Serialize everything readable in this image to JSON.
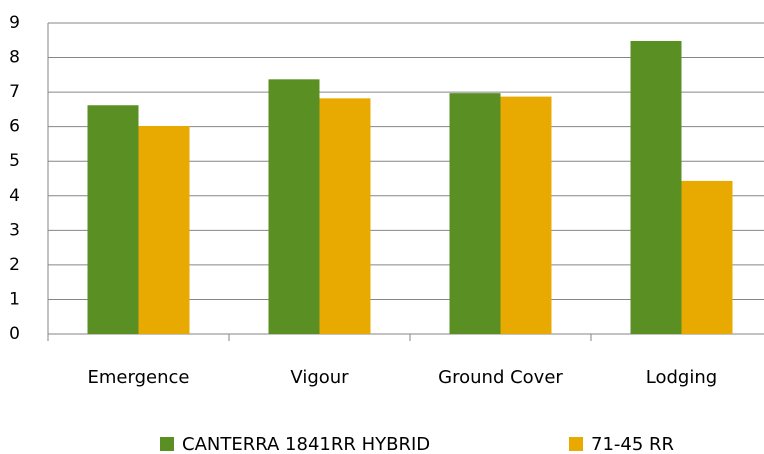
{
  "chart_data": {
    "type": "bar",
    "categories": [
      "Emergence",
      "Vigour",
      "Ground Cover",
      "Lodging"
    ],
    "series": [
      {
        "name": "CANTERRA 1841RR HYBRID",
        "color": "#5a8f23",
        "values": [
          6.62,
          7.37,
          6.97,
          8.48
        ]
      },
      {
        "name": "71-45 RR",
        "color": "#e8aa00",
        "values": [
          6.02,
          6.82,
          6.87,
          4.43
        ]
      }
    ],
    "ylim": [
      0,
      9
    ],
    "yticks": [
      0,
      1,
      2,
      3,
      4,
      5,
      6,
      7,
      8,
      9
    ],
    "grid": true,
    "legend": "bottom"
  }
}
